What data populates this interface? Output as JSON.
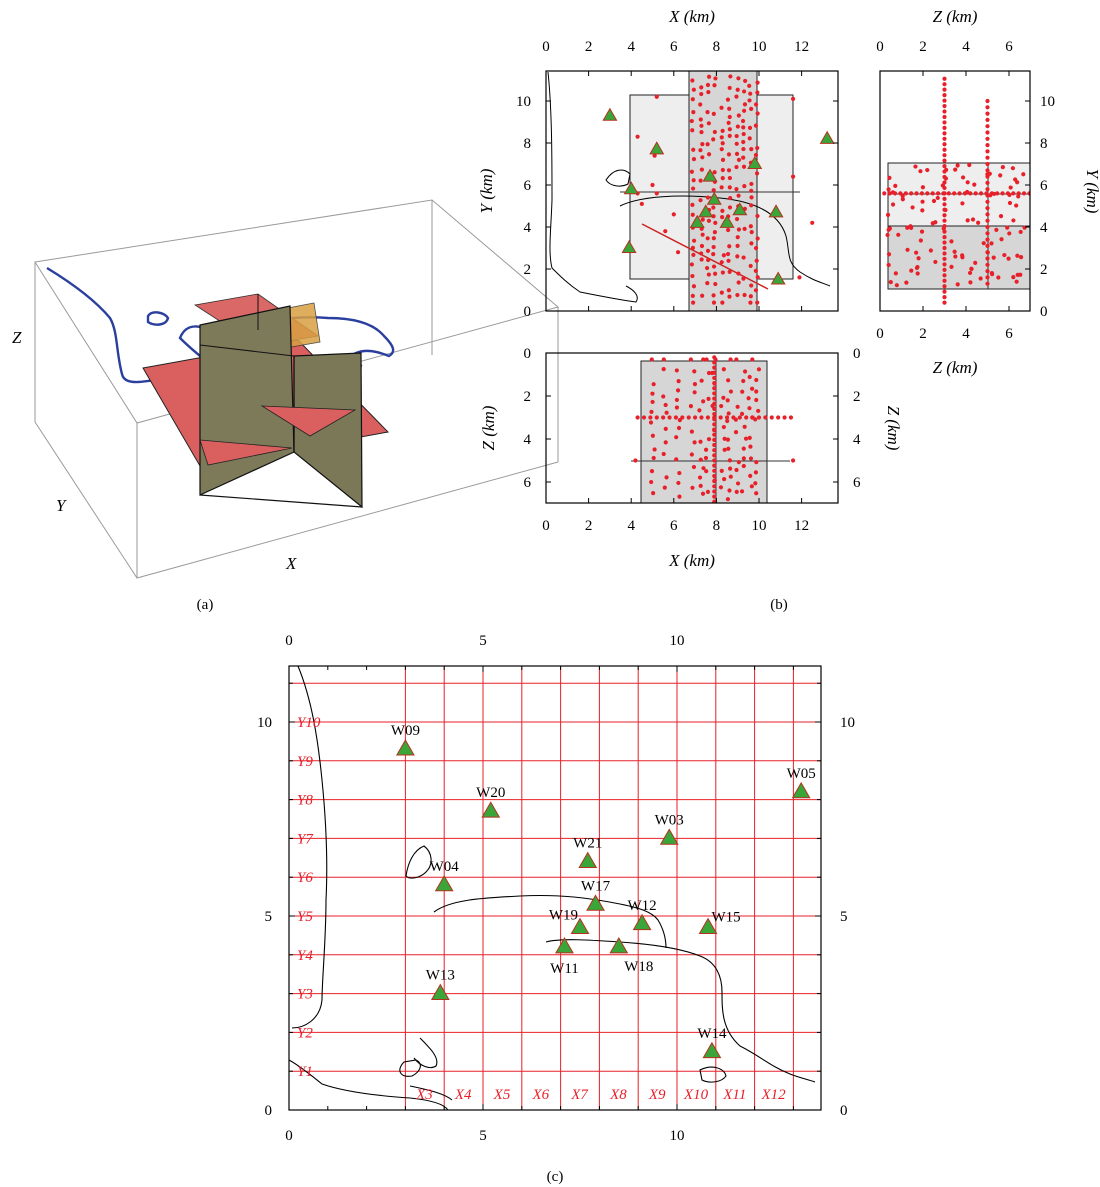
{
  "panels": {
    "a_label": "(a)",
    "b_label": "(b)",
    "c_label": "(c)"
  },
  "panel_a": {
    "axis_x": "X",
    "axis_y": "Y",
    "axis_z": "Z"
  },
  "panel_b": {
    "xy_top_label": "X (km)",
    "xy_left_label": "Y (km)",
    "zy_top_label": "Z (km)",
    "zy_bottom_label": "Z (km)",
    "zy_right_label": "Y (km)",
    "xz_left_label": "Z (km)",
    "xz_right_label": "Z (km)",
    "xz_bottom_label": "X (km)",
    "x_ticks": [
      "0",
      "2",
      "4",
      "6",
      "8",
      "10",
      "12"
    ],
    "y_ticks": [
      "0",
      "2",
      "4",
      "6",
      "8",
      "10"
    ],
    "z_ticks": [
      "0",
      "2",
      "4",
      "6"
    ]
  },
  "panel_c": {
    "ticks": [
      "0",
      "5",
      "10"
    ],
    "x_grid_labels": [
      "X3",
      "X4",
      "X5",
      "X6",
      "X7",
      "X8",
      "X9",
      "X10",
      "X11",
      "X12"
    ],
    "y_grid_labels": [
      "Y1",
      "Y2",
      "Y3",
      "Y4",
      "Y5",
      "Y6",
      "Y7",
      "Y8",
      "Y9",
      "Y10"
    ]
  },
  "colors": {
    "grid_red": "#e8202a",
    "station_green": "#3aa63a",
    "coast_blue": "#2a3f9e",
    "plane_red": "#d9605f",
    "plane_olive": "#7d7a5a",
    "plane_orange": "#d9a043"
  },
  "chart_data": {
    "type": "scatter",
    "x_unit": "km",
    "y_unit": "km",
    "xlim": [
      0,
      13.7
    ],
    "ylim": [
      0,
      11.4
    ],
    "series": [
      {
        "name": "stations",
        "points": [
          {
            "label": "W09",
            "x": 3.0,
            "y": 9.3
          },
          {
            "label": "W20",
            "x": 5.2,
            "y": 7.7
          },
          {
            "label": "W05",
            "x": 13.2,
            "y": 8.2
          },
          {
            "label": "W03",
            "x": 9.8,
            "y": 7.0
          },
          {
            "label": "W21",
            "x": 7.7,
            "y": 6.4
          },
          {
            "label": "W04",
            "x": 4.0,
            "y": 5.8
          },
          {
            "label": "W17",
            "x": 7.9,
            "y": 5.3
          },
          {
            "label": "W12",
            "x": 9.1,
            "y": 4.8
          },
          {
            "label": "W15",
            "x": 10.8,
            "y": 4.7
          },
          {
            "label": "W19",
            "x": 7.5,
            "y": 4.7
          },
          {
            "label": "W11",
            "x": 7.1,
            "y": 4.2
          },
          {
            "label": "W18",
            "x": 8.5,
            "y": 4.2
          },
          {
            "label": "W13",
            "x": 3.9,
            "y": 3.0
          },
          {
            "label": "W14",
            "x": 10.9,
            "y": 1.5
          }
        ]
      }
    ]
  }
}
